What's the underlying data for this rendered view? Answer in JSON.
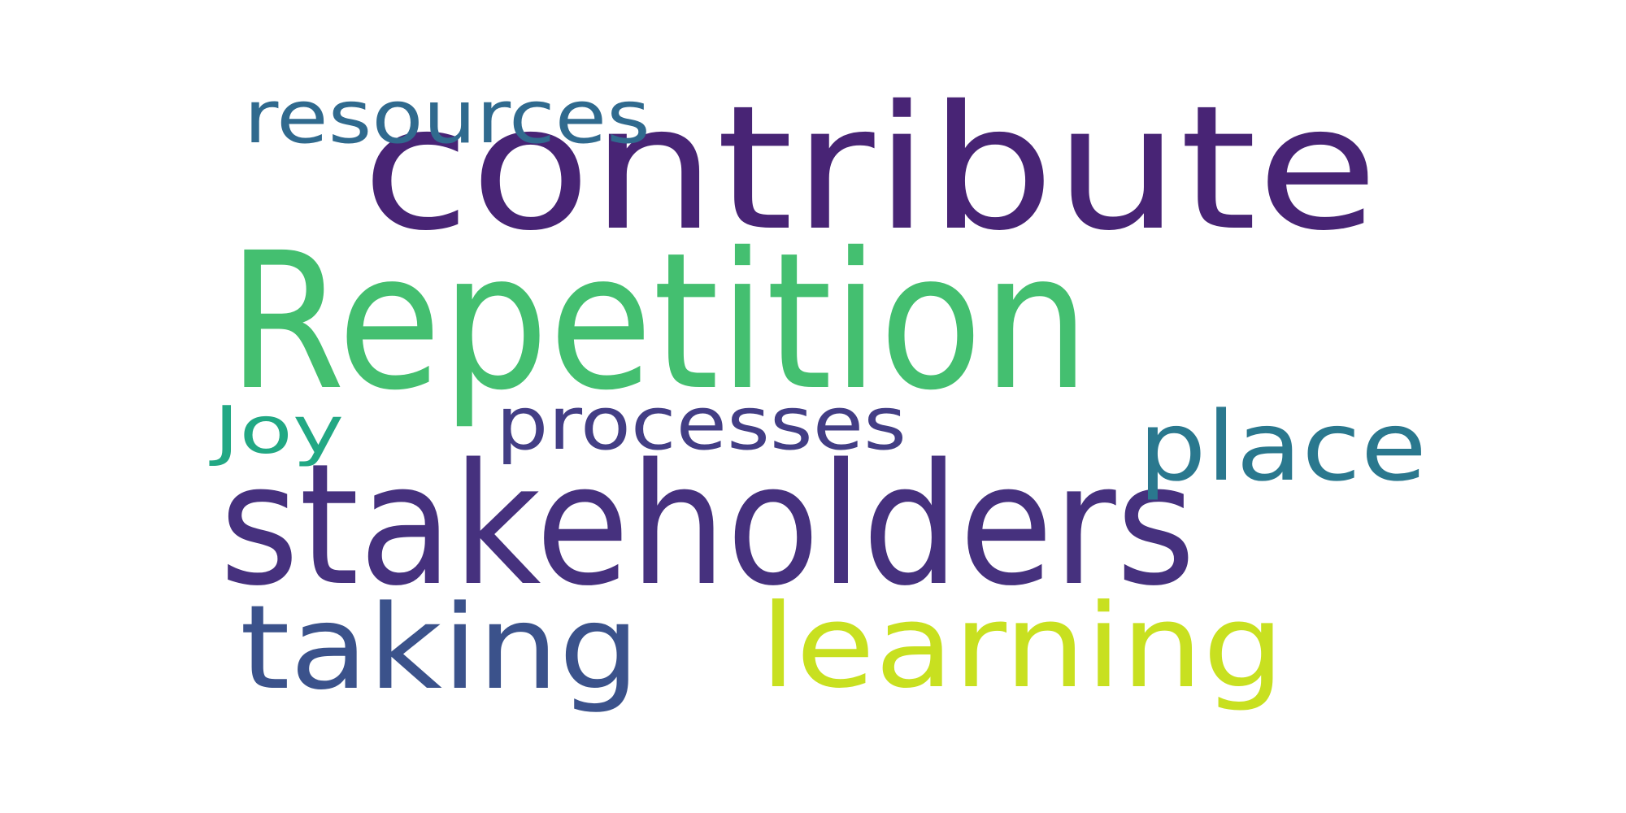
{
  "wordcloud": {
    "background": "#ffffff",
    "words": [
      {
        "id": "contribute",
        "text": "contribute",
        "color": "#482475"
      },
      {
        "id": "repetition",
        "text": "Repetition",
        "color": "#44bf70"
      },
      {
        "id": "stakeholders",
        "text": "stakeholders",
        "color": "#46317e"
      },
      {
        "id": "learning",
        "text": "learning",
        "color": "#c8e020"
      },
      {
        "id": "taking",
        "text": "taking",
        "color": "#3b528b"
      },
      {
        "id": "place",
        "text": "place",
        "color": "#2a788e"
      },
      {
        "id": "processes",
        "text": "processes",
        "color": "#433e85"
      },
      {
        "id": "resources",
        "text": "resources",
        "color": "#306a8e"
      },
      {
        "id": "joy",
        "text": "Joy",
        "color": "#22a884"
      }
    ]
  }
}
